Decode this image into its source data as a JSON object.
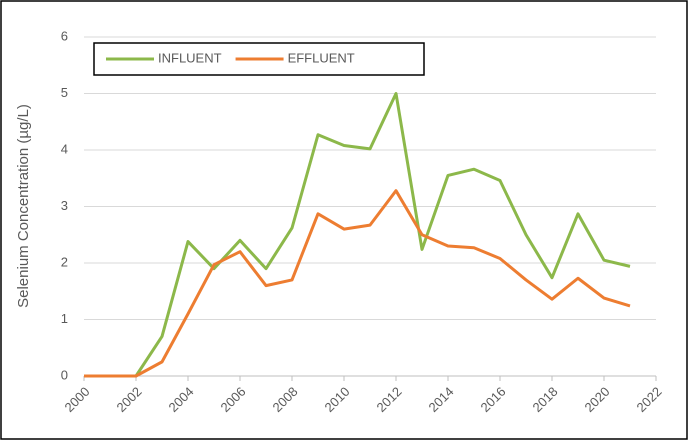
{
  "chart_data": {
    "type": "line",
    "y_label": "Selenium Concentration (µg/L)",
    "x": [
      2000,
      2001,
      2002,
      2003,
      2004,
      2005,
      2006,
      2007,
      2008,
      2009,
      2010,
      2011,
      2012,
      2013,
      2014,
      2015,
      2016,
      2017,
      2018,
      2019,
      2020,
      2021
    ],
    "series": [
      {
        "name": "INFLUENT",
        "color": "#8cb84a",
        "values": [
          0,
          0,
          0,
          0.7,
          2.38,
          1.9,
          2.4,
          1.9,
          2.62,
          4.27,
          4.08,
          4.02,
          5.0,
          2.24,
          3.55,
          3.66,
          3.46,
          2.5,
          1.74,
          2.87,
          2.05,
          1.94
        ]
      },
      {
        "name": "EFFLUENT",
        "color": "#ed7d31",
        "values": [
          0,
          0,
          0,
          0.25,
          1.1,
          1.97,
          2.2,
          1.6,
          1.7,
          2.87,
          2.6,
          2.67,
          3.28,
          2.5,
          2.3,
          2.27,
          2.08,
          1.7,
          1.36,
          1.73,
          1.38,
          1.24
        ]
      }
    ],
    "xlim": [
      2000,
      2022
    ],
    "xticks": [
      2000,
      2002,
      2004,
      2006,
      2008,
      2010,
      2012,
      2014,
      2016,
      2018,
      2020,
      2022
    ],
    "ylim": [
      0,
      6
    ],
    "yticks": [
      0,
      1,
      2,
      3,
      4,
      5,
      6
    ],
    "grid": true,
    "legend": "top-left"
  }
}
